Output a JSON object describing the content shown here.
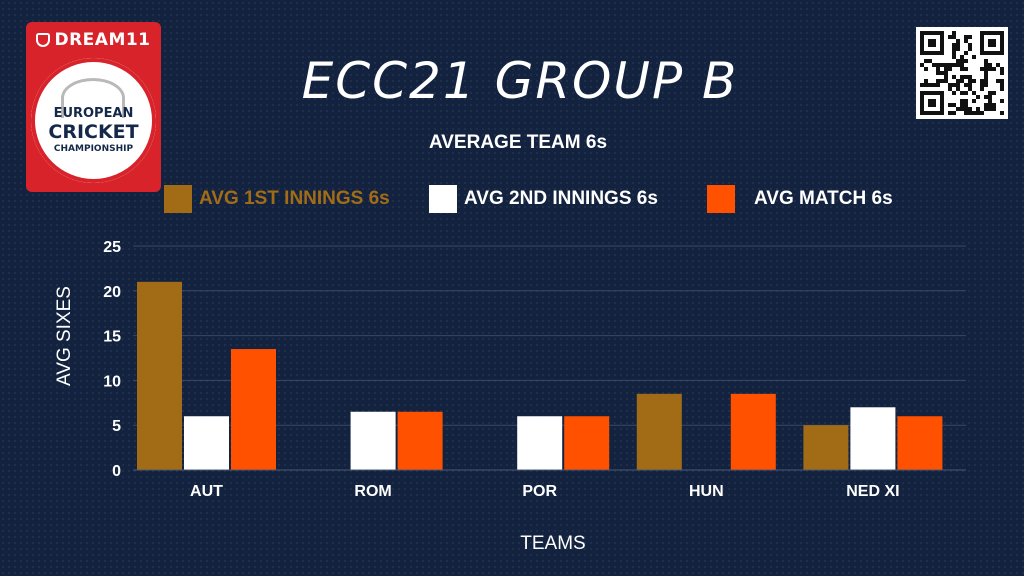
{
  "logo": {
    "brand": "DREAM11",
    "line1": "EUROPEAN",
    "line2": "CRICKET",
    "line3": "CHAMPIONSHIP"
  },
  "title": "ECC21 GROUP B",
  "subtitle": "AVERAGE TEAM 6s",
  "chart_data": {
    "type": "bar",
    "categories": [
      "AUT",
      "ROM",
      "POR",
      "HUN",
      "NED XI"
    ],
    "series": [
      {
        "name": "AVG 1ST INNINGS 6s",
        "color": "#a26c17",
        "text_color": "#a26c17",
        "values": [
          21,
          0,
          0,
          8.5,
          5
        ]
      },
      {
        "name": "AVG 2ND INNINGS 6s",
        "color": "#ffffff",
        "text_color": "#ffffff",
        "values": [
          6,
          6.5,
          6,
          0,
          7
        ]
      },
      {
        "name": "AVG MATCH 6s",
        "color": "#ff5100",
        "text_color": "#ffffff",
        "values": [
          13.5,
          6.5,
          6,
          8.5,
          6
        ]
      }
    ],
    "ylim": [
      0,
      25
    ],
    "yticks": [
      0,
      5,
      10,
      15,
      20,
      25
    ],
    "xlabel": "TEAMS",
    "ylabel": "AVG SIXES",
    "grid": true,
    "legend": "top"
  }
}
